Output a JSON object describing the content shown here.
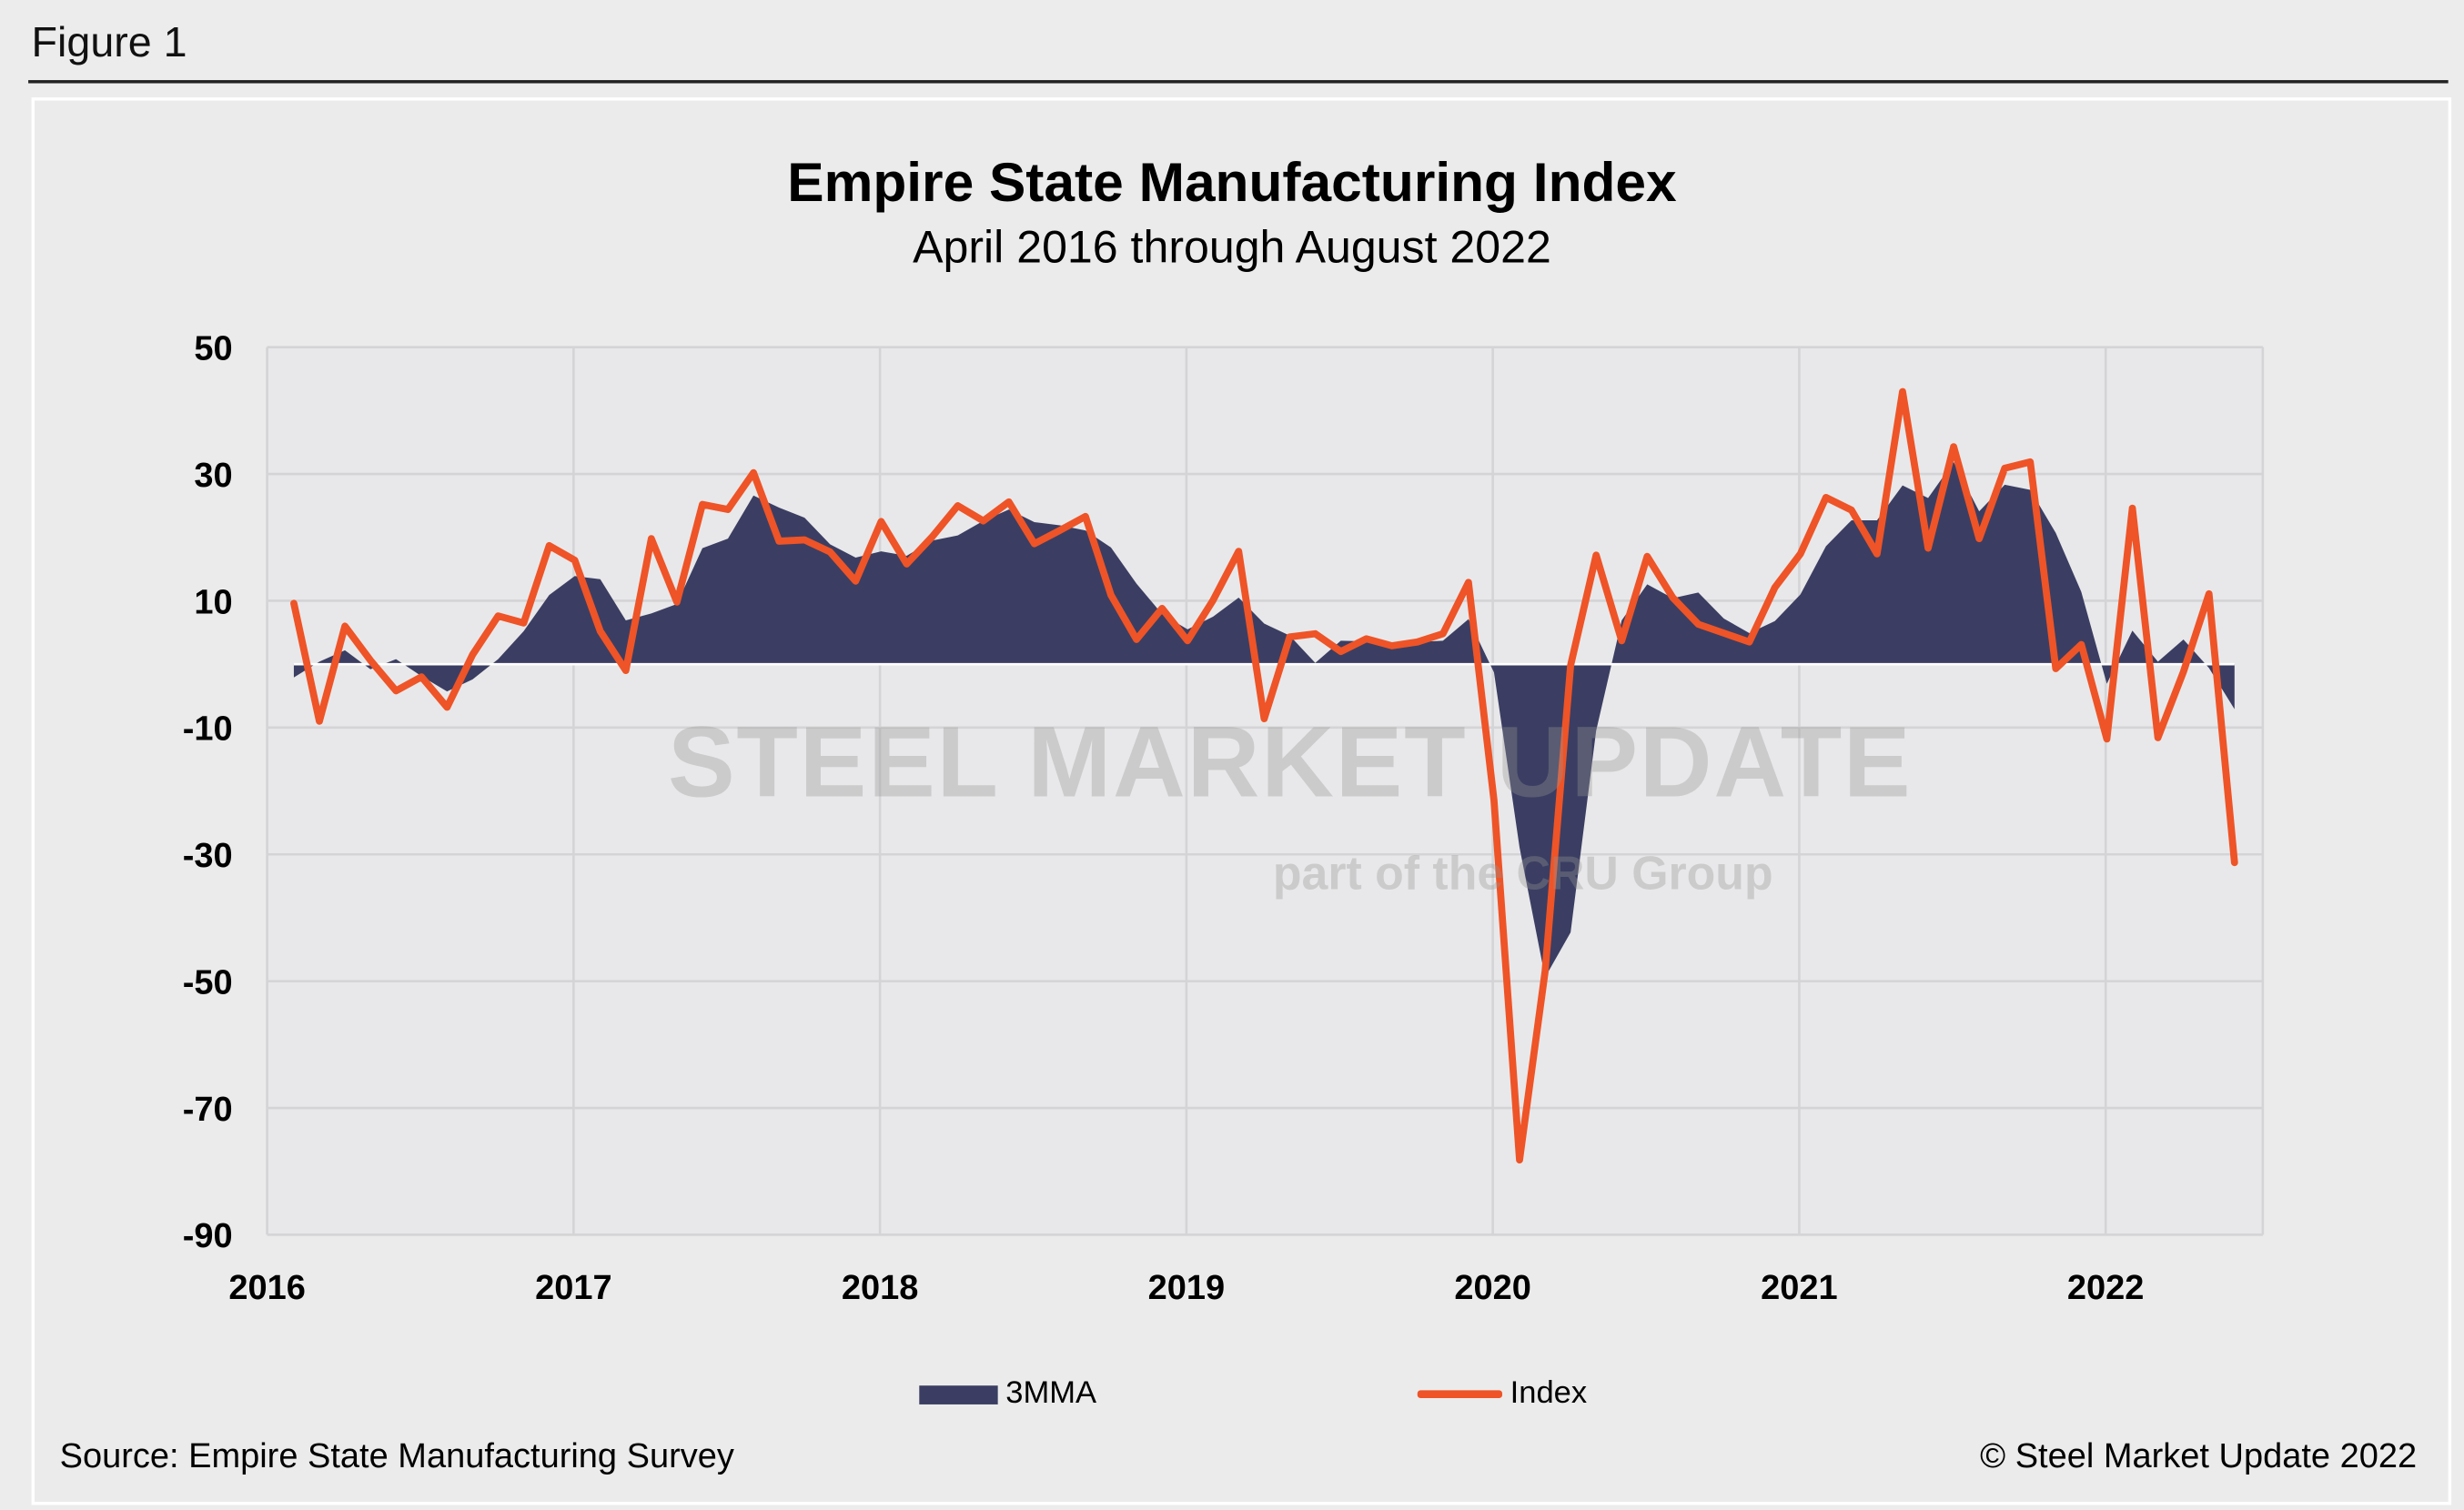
{
  "figure_label": "Figure 1",
  "watermark": {
    "line1": "STEEL MARKET UPDATE",
    "line2": "part of the CRU Group"
  },
  "source": "Source: Empire State Manufacturing Survey",
  "copyright": "© Steel Market Update 2022",
  "colors": {
    "area": "#3b3e62",
    "line": "#ee5427",
    "plot_bg": "#e8e8ea",
    "grid": "#d4d4d6"
  },
  "chart_data": {
    "type": "area+line",
    "title": "Empire State Manufacturing Index",
    "subtitle": "April 2016 through August 2022",
    "xlabel": "",
    "ylabel": "",
    "ylim": [
      -90,
      50
    ],
    "yticks": [
      50,
      30,
      10,
      -10,
      -30,
      -50,
      -70,
      -90
    ],
    "xtick_labels": [
      "2016",
      "2017",
      "2018",
      "2019",
      "2020",
      "2021",
      "2022"
    ],
    "grid": true,
    "legend": "bottom",
    "x": [
      "2016-04",
      "2016-05",
      "2016-06",
      "2016-07",
      "2016-08",
      "2016-09",
      "2016-10",
      "2016-11",
      "2016-12",
      "2017-01",
      "2017-02",
      "2017-03",
      "2017-04",
      "2017-05",
      "2017-06",
      "2017-07",
      "2017-08",
      "2017-09",
      "2017-10",
      "2017-11",
      "2017-12",
      "2018-01",
      "2018-02",
      "2018-03",
      "2018-04",
      "2018-05",
      "2018-06",
      "2018-07",
      "2018-08",
      "2018-09",
      "2018-10",
      "2018-11",
      "2018-12",
      "2019-01",
      "2019-02",
      "2019-03",
      "2019-04",
      "2019-05",
      "2019-06",
      "2019-07",
      "2019-08",
      "2019-09",
      "2019-10",
      "2019-11",
      "2019-12",
      "2020-01",
      "2020-02",
      "2020-03",
      "2020-04",
      "2020-05",
      "2020-06",
      "2020-07",
      "2020-08",
      "2020-09",
      "2020-10",
      "2020-11",
      "2020-12",
      "2021-01",
      "2021-02",
      "2021-03",
      "2021-04",
      "2021-05",
      "2021-06",
      "2021-07",
      "2021-08",
      "2021-09",
      "2021-10",
      "2021-11",
      "2021-12",
      "2022-01",
      "2022-02",
      "2022-03",
      "2022-04",
      "2022-05",
      "2022-06",
      "2022-07",
      "2022-08"
    ],
    "series": [
      {
        "name": "3MMA",
        "type": "area",
        "values": [
          -2.1,
          0.4,
          2.2,
          -0.8,
          0.8,
          -1.9,
          -4.3,
          -2.4,
          0.8,
          5.2,
          10.9,
          13.9,
          13.4,
          6.9,
          8.0,
          9.5,
          18.3,
          19.8,
          26.6,
          24.7,
          23.1,
          18.9,
          16.8,
          17.8,
          17.1,
          19.5,
          20.3,
          22.6,
          24.4,
          22.4,
          21.9,
          21.1,
          18.4,
          12.7,
          7.9,
          5.5,
          7.5,
          10.5,
          6.4,
          4.5,
          0.2,
          3.7,
          3.6,
          3.0,
          3.5,
          3.7,
          7.1,
          -1.3,
          -28.9,
          -49.4,
          -42.3,
          -10.5,
          6.9,
          12.6,
          10.4,
          11.3,
          7.2,
          4.9,
          6.8,
          11.0,
          18.6,
          22.7,
          22.7,
          28.2,
          26.2,
          31.9,
          24.1,
          28.3,
          27.5,
          20.7,
          11.4,
          -3.1,
          5.3,
          0.4,
          3.9,
          -0.6,
          -7.1
        ]
      },
      {
        "name": "Index",
        "type": "line",
        "values": [
          9.6,
          -9.0,
          6.0,
          0.6,
          -4.2,
          -2.0,
          -6.8,
          1.5,
          7.6,
          6.5,
          18.7,
          16.4,
          5.2,
          -1.0,
          19.8,
          9.8,
          25.2,
          24.4,
          30.2,
          19.4,
          19.6,
          17.7,
          13.1,
          22.5,
          15.8,
          20.1,
          25.0,
          22.6,
          25.6,
          19.0,
          21.1,
          23.3,
          10.9,
          3.9,
          8.8,
          3.7,
          10.1,
          17.8,
          -8.6,
          4.3,
          4.8,
          2.0,
          4.0,
          2.9,
          3.5,
          4.8,
          12.9,
          -21.5,
          -78.2,
          -48.5,
          -0.2,
          17.2,
          3.7,
          17.0,
          10.5,
          6.3,
          4.9,
          3.5,
          12.1,
          17.4,
          26.3,
          24.3,
          17.4,
          43.0,
          18.3,
          34.3,
          19.8,
          30.9,
          31.9,
          -0.7,
          3.1,
          -11.8,
          24.6,
          -11.6,
          -1.2,
          11.1,
          -31.3
        ]
      }
    ]
  }
}
